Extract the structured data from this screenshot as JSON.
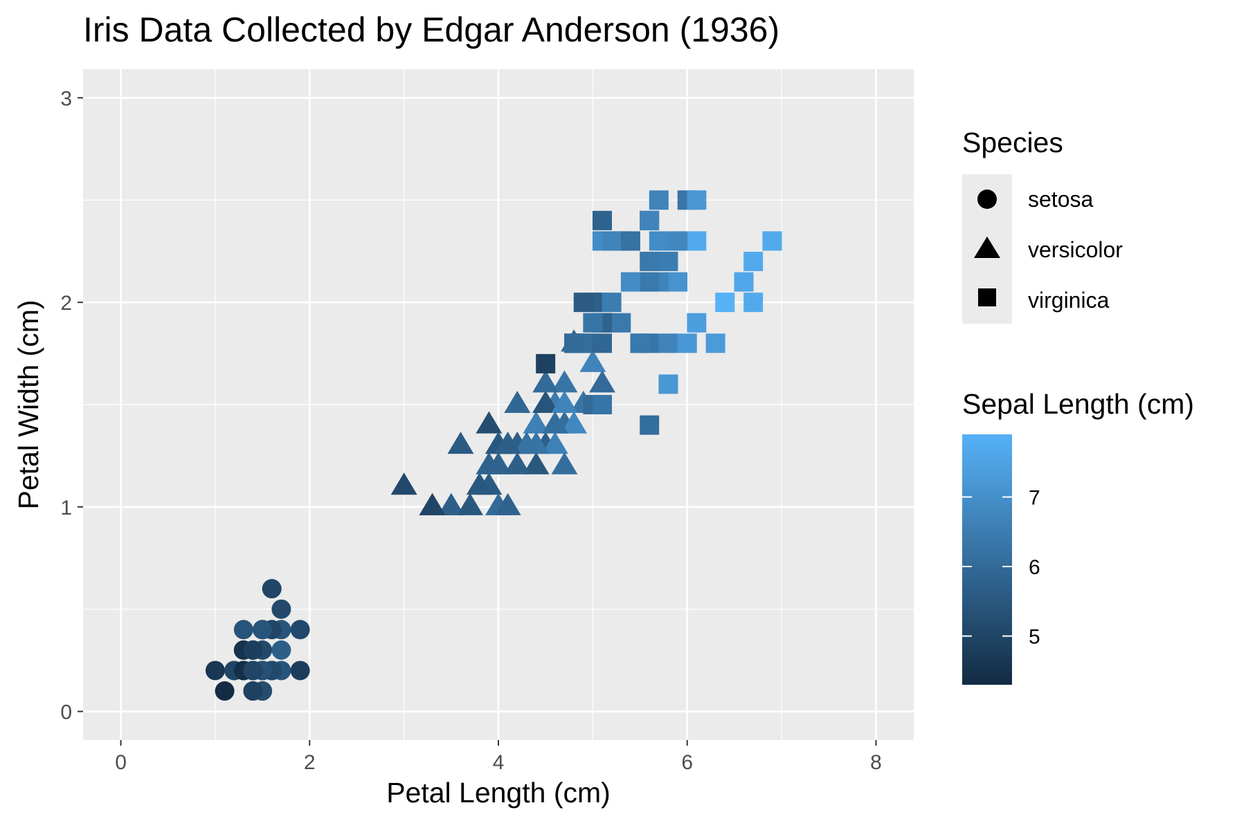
{
  "chart_data": {
    "type": "scatter",
    "title": "Iris Data Collected by Edgar Anderson (1936)",
    "xlabel": "Petal Length (cm)",
    "ylabel": "Petal Width (cm)",
    "xlim": [
      -0.4,
      8.4
    ],
    "ylim": [
      -0.14,
      3.14
    ],
    "x_ticks": [
      0,
      2,
      4,
      6,
      8
    ],
    "y_ticks": [
      0,
      1,
      2,
      3
    ],
    "grid": true,
    "legend_position": "right",
    "shape_legend": {
      "title": "Species",
      "entries": [
        {
          "label": "setosa",
          "shape": "circle"
        },
        {
          "label": "versicolor",
          "shape": "triangle"
        },
        {
          "label": "virginica",
          "shape": "square"
        }
      ]
    },
    "color_legend": {
      "title": "Sepal Length (cm)",
      "range": [
        4.3,
        7.9
      ],
      "ticks": [
        5,
        6,
        7
      ],
      "low_color": "#132b43",
      "high_color": "#56b1f7"
    },
    "series": [
      {
        "name": "setosa",
        "shape": "circle",
        "points": [
          [
            1.4,
            0.2,
            5.1
          ],
          [
            1.4,
            0.2,
            4.9
          ],
          [
            1.3,
            0.2,
            4.7
          ],
          [
            1.5,
            0.2,
            4.6
          ],
          [
            1.4,
            0.2,
            5.0
          ],
          [
            1.7,
            0.4,
            5.4
          ],
          [
            1.4,
            0.3,
            4.6
          ],
          [
            1.5,
            0.2,
            5.0
          ],
          [
            1.4,
            0.2,
            4.4
          ],
          [
            1.5,
            0.1,
            4.9
          ],
          [
            1.5,
            0.2,
            5.4
          ],
          [
            1.6,
            0.2,
            4.8
          ],
          [
            1.4,
            0.1,
            4.8
          ],
          [
            1.1,
            0.1,
            4.3
          ],
          [
            1.2,
            0.2,
            5.8
          ],
          [
            1.5,
            0.4,
            5.7
          ],
          [
            1.3,
            0.4,
            5.4
          ],
          [
            1.4,
            0.3,
            5.1
          ],
          [
            1.7,
            0.3,
            5.7
          ],
          [
            1.5,
            0.3,
            5.1
          ],
          [
            1.7,
            0.2,
            5.4
          ],
          [
            1.5,
            0.4,
            5.1
          ],
          [
            1.0,
            0.2,
            4.6
          ],
          [
            1.7,
            0.5,
            5.1
          ],
          [
            1.9,
            0.2,
            4.8
          ],
          [
            1.6,
            0.2,
            5.0
          ],
          [
            1.6,
            0.4,
            5.0
          ],
          [
            1.5,
            0.2,
            5.2
          ],
          [
            1.4,
            0.2,
            5.2
          ],
          [
            1.6,
            0.2,
            4.7
          ],
          [
            1.6,
            0.2,
            4.8
          ],
          [
            1.5,
            0.4,
            5.4
          ],
          [
            1.5,
            0.1,
            5.2
          ],
          [
            1.4,
            0.2,
            5.5
          ],
          [
            1.5,
            0.2,
            4.9
          ],
          [
            1.2,
            0.2,
            5.0
          ],
          [
            1.3,
            0.2,
            5.5
          ],
          [
            1.4,
            0.1,
            4.9
          ],
          [
            1.3,
            0.2,
            4.4
          ],
          [
            1.5,
            0.2,
            5.1
          ],
          [
            1.3,
            0.3,
            5.0
          ],
          [
            1.3,
            0.3,
            4.5
          ],
          [
            1.3,
            0.2,
            4.4
          ],
          [
            1.6,
            0.6,
            5.0
          ],
          [
            1.9,
            0.4,
            5.1
          ],
          [
            1.4,
            0.3,
            4.8
          ],
          [
            1.6,
            0.2,
            5.1
          ],
          [
            1.4,
            0.2,
            4.6
          ],
          [
            1.5,
            0.2,
            5.3
          ],
          [
            1.4,
            0.2,
            5.0
          ]
        ]
      },
      {
        "name": "versicolor",
        "shape": "triangle",
        "points": [
          [
            4.7,
            1.4,
            7.0
          ],
          [
            4.5,
            1.5,
            6.4
          ],
          [
            4.9,
            1.5,
            6.9
          ],
          [
            4.0,
            1.3,
            5.5
          ],
          [
            4.6,
            1.5,
            6.5
          ],
          [
            4.5,
            1.3,
            5.7
          ],
          [
            4.7,
            1.6,
            6.3
          ],
          [
            3.3,
            1.0,
            4.9
          ],
          [
            4.6,
            1.3,
            6.6
          ],
          [
            3.9,
            1.4,
            5.2
          ],
          [
            3.5,
            1.0,
            5.0
          ],
          [
            4.2,
            1.5,
            5.9
          ],
          [
            4.0,
            1.0,
            6.0
          ],
          [
            4.7,
            1.4,
            6.1
          ],
          [
            3.6,
            1.3,
            5.6
          ],
          [
            4.4,
            1.4,
            6.7
          ],
          [
            4.5,
            1.5,
            5.6
          ],
          [
            4.1,
            1.0,
            5.8
          ],
          [
            4.5,
            1.5,
            6.2
          ],
          [
            3.9,
            1.1,
            5.6
          ],
          [
            4.8,
            1.8,
            5.9
          ],
          [
            4.0,
            1.3,
            6.1
          ],
          [
            4.9,
            1.5,
            6.3
          ],
          [
            4.7,
            1.2,
            6.1
          ],
          [
            4.3,
            1.3,
            6.4
          ],
          [
            4.4,
            1.4,
            6.6
          ],
          [
            4.8,
            1.4,
            6.8
          ],
          [
            5.0,
            1.7,
            6.7
          ],
          [
            4.5,
            1.5,
            6.0
          ],
          [
            3.5,
            1.0,
            5.7
          ],
          [
            3.8,
            1.1,
            5.5
          ],
          [
            3.7,
            1.0,
            5.5
          ],
          [
            3.9,
            1.2,
            5.8
          ],
          [
            5.1,
            1.6,
            6.0
          ],
          [
            4.5,
            1.5,
            5.4
          ],
          [
            4.5,
            1.6,
            6.0
          ],
          [
            4.7,
            1.5,
            6.7
          ],
          [
            4.4,
            1.3,
            6.3
          ],
          [
            4.1,
            1.3,
            5.6
          ],
          [
            4.0,
            1.3,
            5.5
          ],
          [
            4.4,
            1.2,
            5.5
          ],
          [
            4.6,
            1.4,
            6.1
          ],
          [
            4.0,
            1.2,
            5.8
          ],
          [
            3.3,
            1.0,
            5.0
          ],
          [
            4.2,
            1.3,
            5.6
          ],
          [
            4.2,
            1.2,
            5.7
          ],
          [
            4.2,
            1.3,
            5.7
          ],
          [
            4.3,
            1.3,
            6.2
          ],
          [
            3.0,
            1.1,
            5.1
          ],
          [
            4.1,
            1.3,
            5.7
          ]
        ]
      },
      {
        "name": "virginica",
        "shape": "square",
        "points": [
          [
            6.0,
            2.5,
            6.3
          ],
          [
            5.1,
            1.9,
            5.8
          ],
          [
            5.9,
            2.1,
            7.1
          ],
          [
            5.6,
            1.8,
            6.3
          ],
          [
            5.8,
            2.2,
            6.5
          ],
          [
            6.6,
            2.1,
            7.6
          ],
          [
            4.5,
            1.7,
            4.9
          ],
          [
            6.3,
            1.8,
            7.3
          ],
          [
            5.8,
            1.8,
            6.7
          ],
          [
            6.1,
            2.5,
            7.2
          ],
          [
            5.1,
            2.0,
            6.5
          ],
          [
            5.3,
            1.9,
            6.4
          ],
          [
            5.5,
            2.1,
            6.8
          ],
          [
            5.0,
            2.0,
            5.7
          ],
          [
            5.1,
            2.4,
            5.8
          ],
          [
            5.3,
            2.3,
            6.4
          ],
          [
            5.5,
            1.8,
            6.5
          ],
          [
            6.7,
            2.2,
            7.7
          ],
          [
            6.9,
            2.3,
            7.7
          ],
          [
            5.0,
            1.5,
            6.0
          ],
          [
            5.7,
            2.3,
            6.9
          ],
          [
            4.9,
            2.0,
            5.6
          ],
          [
            6.7,
            2.0,
            7.7
          ],
          [
            4.9,
            1.8,
            6.3
          ],
          [
            5.7,
            2.1,
            6.7
          ],
          [
            6.0,
            1.8,
            7.2
          ],
          [
            4.8,
            1.8,
            6.2
          ],
          [
            4.9,
            1.8,
            6.1
          ],
          [
            5.6,
            2.1,
            6.4
          ],
          [
            5.8,
            1.6,
            7.2
          ],
          [
            6.1,
            1.9,
            7.4
          ],
          [
            6.4,
            2.0,
            7.9
          ],
          [
            5.6,
            2.2,
            6.4
          ],
          [
            5.1,
            1.5,
            6.3
          ],
          [
            5.6,
            1.4,
            6.1
          ],
          [
            6.1,
            2.3,
            7.7
          ],
          [
            5.6,
            2.4,
            6.3
          ],
          [
            5.5,
            1.8,
            6.4
          ],
          [
            4.8,
            1.8,
            6.0
          ],
          [
            5.4,
            2.1,
            6.9
          ],
          [
            5.6,
            2.4,
            6.7
          ],
          [
            5.1,
            2.3,
            6.9
          ],
          [
            5.1,
            1.9,
            5.8
          ],
          [
            5.9,
            2.3,
            6.8
          ],
          [
            5.7,
            2.5,
            6.7
          ],
          [
            5.2,
            2.3,
            6.7
          ],
          [
            5.0,
            1.9,
            6.3
          ],
          [
            5.2,
            2.0,
            6.5
          ],
          [
            5.4,
            2.3,
            6.2
          ],
          [
            5.1,
            1.8,
            5.9
          ]
        ]
      }
    ]
  }
}
